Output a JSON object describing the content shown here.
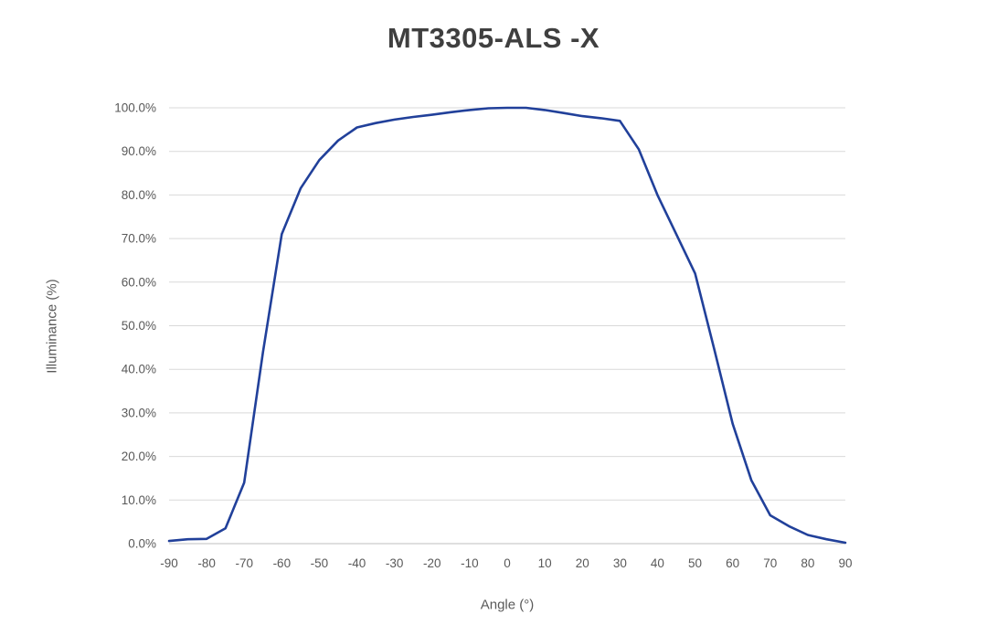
{
  "chart_data": {
    "type": "line",
    "title": "MT3305-ALS -X",
    "xlabel": "Angle  (°)",
    "ylabel": "Illuminance  (%)",
    "xlim": [
      -90,
      90
    ],
    "ylim": [
      0,
      100
    ],
    "x_ticks": [
      -90,
      -80,
      -70,
      -60,
      -50,
      -40,
      -30,
      -20,
      -10,
      0,
      10,
      20,
      30,
      40,
      50,
      60,
      70,
      80,
      90
    ],
    "y_ticks": [
      0,
      10,
      20,
      30,
      40,
      50,
      60,
      70,
      80,
      90,
      100
    ],
    "y_tick_format": "percent-one-decimal",
    "grid": "horizontal",
    "legend": "none",
    "colors": {
      "line": "#21409a",
      "grid": "#d9d9d9",
      "baseline": "#bfbfbf",
      "axis_text": "#595959",
      "title_text": "#3f3f3f"
    },
    "series": [
      {
        "name": "Illuminance (%)",
        "x": [
          -90,
          -85,
          -80,
          -75,
          -70,
          -65,
          -60,
          -55,
          -50,
          -45,
          -40,
          -35,
          -30,
          -25,
          -20,
          -15,
          -10,
          -5,
          0,
          5,
          10,
          15,
          20,
          25,
          30,
          35,
          40,
          45,
          50,
          55,
          60,
          65,
          70,
          75,
          80,
          85,
          90
        ],
        "values": [
          0.6,
          1.0,
          1.1,
          3.5,
          14.0,
          44.0,
          71.0,
          81.5,
          88.0,
          92.5,
          95.5,
          96.5,
          97.3,
          97.9,
          98.4,
          99.0,
          99.5,
          99.9,
          100.0,
          100.0,
          99.5,
          98.8,
          98.1,
          97.6,
          97.0,
          90.5,
          80.0,
          71.0,
          62.0,
          45.0,
          27.5,
          14.5,
          6.5,
          4.0,
          2.0,
          1.0,
          0.2
        ]
      }
    ]
  }
}
